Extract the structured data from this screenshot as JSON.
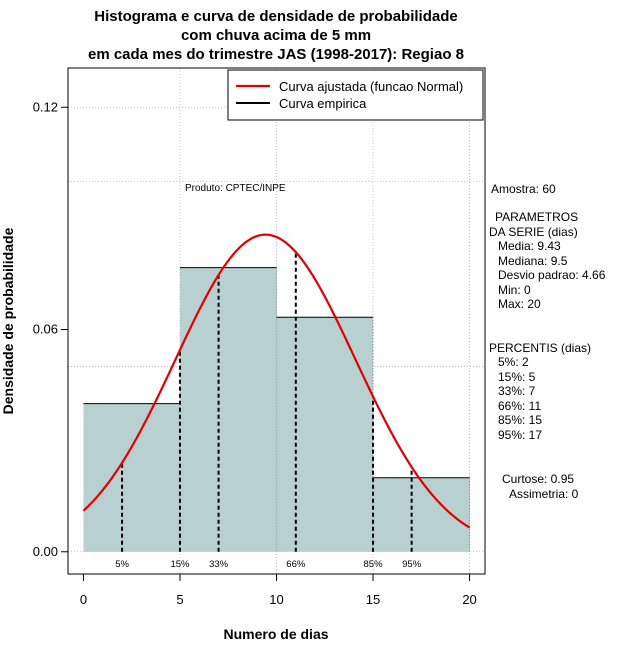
{
  "chart_data": {
    "type": "bar",
    "title_lines": [
      "Histograma e curva de densidade de probabilidade",
      "com chuva acima de 5 mm",
      "em cada mes do trimestre JAS (1998-2017): Regiao 8"
    ],
    "xlabel": "Numero de dias",
    "ylabel": "Densidade de probabilidade",
    "xlim": [
      -0.8,
      20.8
    ],
    "ylim": [
      -0.006,
      0.1306
    ],
    "xticks": [
      0,
      5,
      10,
      15,
      20
    ],
    "xtick_labels": [
      "0",
      "5",
      "10",
      "15",
      "20"
    ],
    "yticks": [
      0.0,
      0.06,
      0.12
    ],
    "ytick_labels": [
      "0.00",
      "0.06",
      "0.12"
    ],
    "grid_y": [
      0.0,
      0.05,
      0.1,
      0.12
    ],
    "grid_x": [
      5,
      10,
      15,
      20
    ],
    "bins": [
      {
        "x0": 0,
        "x1": 5,
        "density": 0.04
      },
      {
        "x0": 5,
        "x1": 10,
        "density": 0.0767
      },
      {
        "x0": 10,
        "x1": 15,
        "density": 0.0633
      },
      {
        "x0": 15,
        "x1": 20,
        "density": 0.02
      }
    ],
    "bar_color": "#b8d0cf",
    "curve": {
      "name": "Curva ajustada (funcao Normal)",
      "color": "#e00000",
      "mean": 9.43,
      "sd": 4.66,
      "x_range": [
        0,
        20
      ]
    },
    "percentile_lines": [
      {
        "label": "5%",
        "x": 2
      },
      {
        "label": "15%",
        "x": 5
      },
      {
        "label": "33%",
        "x": 7
      },
      {
        "label": "66%",
        "x": 11
      },
      {
        "label": "85%",
        "x": 15
      },
      {
        "label": "95%",
        "x": 17
      }
    ],
    "legend": {
      "position": "top-right",
      "entries": [
        {
          "label": "Curva ajustada (funcao Normal)",
          "color": "#e00000"
        },
        {
          "label": "Curva empirica",
          "color": "#000000"
        }
      ]
    },
    "product_label": "Produto: CPTEC/INPE"
  },
  "side_panel": {
    "sample": "Amostra: 60",
    "params_title1": "PARAMETROS",
    "params_title2": "DA SERIE (dias)",
    "params": [
      "Media: 9.43",
      "Mediana: 9.5",
      "Desvio padrao: 4.66",
      "Min: 0",
      "Max: 20"
    ],
    "percentis_title": "PERCENTIS (dias)",
    "percentis": [
      "5%: 2",
      "15%: 5",
      "33%: 7",
      "66%: 11",
      "85%: 15",
      "95%: 17"
    ],
    "curtose": "Curtose: 0.95",
    "assimetria": "Assimetria: 0"
  }
}
